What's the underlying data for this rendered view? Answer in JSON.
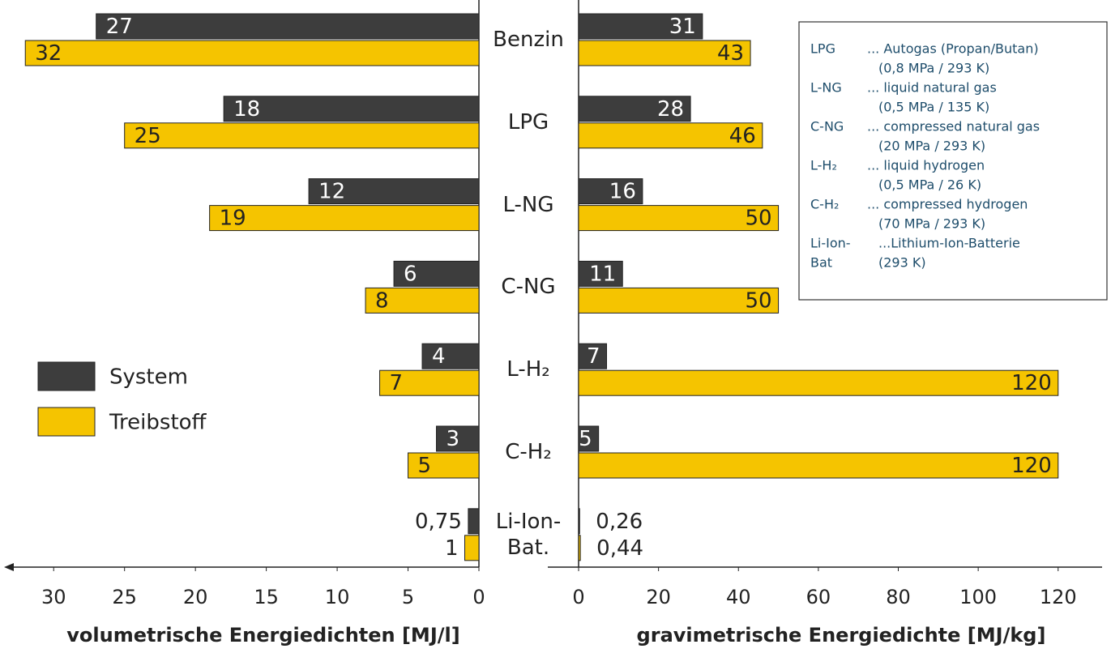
{
  "chart_data": [
    {
      "type": "bar",
      "categories": [
        "Benzin",
        "LPG",
        "L-NG",
        "C-NG",
        "L-H₂",
        "C-H₂",
        "Li-Ion-\nBat."
      ],
      "xlabel": "volumetrische Energiedichten [MJ/l]",
      "xlim": [
        0,
        33.5
      ],
      "xticks": [
        0,
        5,
        10,
        15,
        20,
        25,
        30
      ],
      "series": [
        {
          "name": "System",
          "color": "#3d3d3d",
          "values": [
            27,
            18,
            12,
            6,
            4,
            3,
            0.75
          ],
          "value_labels": [
            "27",
            "18",
            "12",
            "6",
            "4",
            "3",
            "0,75"
          ]
        },
        {
          "name": "Treibstoff",
          "color": "#f5c400",
          "values": [
            32,
            25,
            19,
            8,
            7,
            5,
            1
          ]
        }
      ]
    },
    {
      "type": "bar",
      "xlabel": "gravimetrische Energiedichte [MJ/kg]",
      "xlim": [
        0,
        131
      ],
      "xticks": [
        0,
        20,
        40,
        60,
        80,
        100,
        120
      ],
      "series": [
        {
          "color": "#3d3d3d",
          "values": [
            31,
            28,
            16,
            11,
            7,
            5,
            0.26
          ],
          "value_labels": [
            "31",
            "28",
            "16",
            "11",
            "7",
            "5",
            "0,26"
          ]
        },
        {
          "color": "#f5c400",
          "values": [
            43,
            46,
            50,
            50,
            120,
            120,
            0.44
          ],
          "value_labels": [
            "43",
            "46",
            "50",
            "50",
            "120",
            "120",
            "0,44"
          ]
        }
      ],
      "annotation": [
        {
          "abbr": "LPG",
          "lines": [
            "... Autogas (Propan/Butan)",
            "(0,8 MPa / 293 K)"
          ]
        },
        {
          "abbr": "L-NG",
          "lines": [
            "... liquid natural gas",
            "(0,5 MPa / 135 K)"
          ]
        },
        {
          "abbr": "C-NG",
          "lines": [
            "... compressed natural gas",
            "(20 MPa / 293 K)"
          ]
        },
        {
          "abbr": "L-H₂",
          "lines": [
            "... liquid hydrogen",
            "(0,5 MPa / 26 K)"
          ]
        },
        {
          "abbr": "C-H₂",
          "lines": [
            "... compressed hydrogen",
            "(70 MPa / 293 K)"
          ]
        },
        {
          "abbr": "Li-Ion-",
          "lines": [
            "...Lithium-Ion-Batterie"
          ]
        },
        {
          "abbr": "Bat",
          "lines": [
            "(293 K)"
          ]
        }
      ]
    }
  ]
}
